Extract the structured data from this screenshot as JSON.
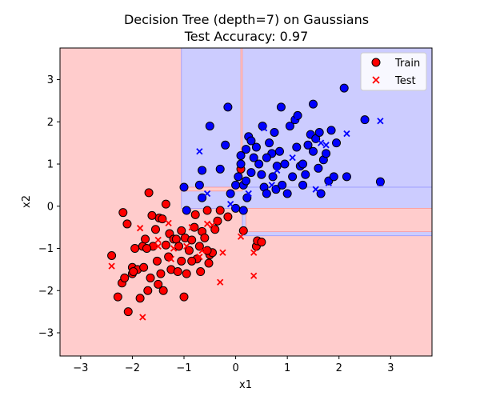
{
  "chart_data": {
    "type": "scatter",
    "title_line1": "Decision Tree (depth=7) on Gaussians",
    "title_line2": "Test Accuracy: 0.97",
    "xlabel": "x1",
    "ylabel": "x2",
    "xlim": [
      -3.4,
      3.8
    ],
    "ylim": [
      -3.55,
      3.75
    ],
    "xticks": [
      -3,
      -2,
      -1,
      0,
      1,
      2,
      3
    ],
    "yticks": [
      -3,
      -2,
      -1,
      0,
      1,
      2,
      3
    ],
    "colors": {
      "region_red": "#ffcccc",
      "region_blue": "#ccccff",
      "boundary_red": "#ff9999",
      "boundary_blue": "#9999ff",
      "class_red": "#ff0000",
      "class_blue": "#0000ff"
    },
    "regions": [
      {
        "class": "red",
        "x0": -3.4,
        "x1": 3.8,
        "y0": -3.55,
        "y1": 3.75
      },
      {
        "class": "blue",
        "x0": -1.05,
        "x1": 3.8,
        "y0": 0.45,
        "y1": 3.75
      },
      {
        "class": "red",
        "x0": 0.1,
        "x1": 0.13,
        "y0": 0.45,
        "y1": 3.75
      },
      {
        "class": "blue",
        "x0": -1.05,
        "x1": 3.8,
        "y0": -0.05,
        "y1": 0.45
      },
      {
        "class": "red",
        "x0": -1.05,
        "x1": 0.13,
        "y0": 0.36,
        "y1": 0.45
      },
      {
        "class": "blue",
        "x0": 0.13,
        "x1": 3.8,
        "y0": -0.7,
        "y1": -0.05
      },
      {
        "class": "red",
        "x0": 0.2,
        "x1": 3.8,
        "y0": -0.6,
        "y1": -0.05
      }
    ],
    "legend": {
      "placement": "upper right",
      "entries": [
        {
          "label": "Train",
          "marker": "circle"
        },
        {
          "label": "Test",
          "marker": "x"
        }
      ]
    },
    "series": [
      {
        "name": "Train",
        "marker": "circle",
        "red": [
          [
            -2.4,
            -1.17
          ],
          [
            -2.2,
            -1.82
          ],
          [
            -2.15,
            -1.7
          ],
          [
            -2.1,
            -0.42
          ],
          [
            -2.0,
            -1.6
          ],
          [
            -2.0,
            -1.45
          ],
          [
            -1.95,
            -1.0
          ],
          [
            -1.9,
            -1.5
          ],
          [
            -1.85,
            -2.18
          ],
          [
            -1.8,
            -0.95
          ],
          [
            -1.78,
            -1.45
          ],
          [
            -1.75,
            -0.78
          ],
          [
            -1.7,
            -2.0
          ],
          [
            -1.65,
            -1.7
          ],
          [
            -1.6,
            -0.95
          ],
          [
            -1.55,
            -0.55
          ],
          [
            -1.52,
            -1.3
          ],
          [
            -1.5,
            -1.85
          ],
          [
            -1.48,
            -0.28
          ],
          [
            -1.45,
            -1.6
          ],
          [
            -1.4,
            -2.0
          ],
          [
            -1.35,
            -0.92
          ],
          [
            -1.3,
            -1.2
          ],
          [
            -1.28,
            -0.65
          ],
          [
            -1.25,
            -1.5
          ],
          [
            -1.2,
            -0.78
          ],
          [
            -1.15,
            -0.78
          ],
          [
            -1.12,
            -1.55
          ],
          [
            -1.1,
            -0.95
          ],
          [
            -1.05,
            -1.3
          ],
          [
            -1.0,
            -2.15
          ],
          [
            -0.98,
            -0.75
          ],
          [
            -0.95,
            -1.6
          ],
          [
            -0.9,
            -1.05
          ],
          [
            -0.85,
            -0.8
          ],
          [
            -0.8,
            -0.5
          ],
          [
            -0.78,
            -0.2
          ],
          [
            -0.75,
            -1.25
          ],
          [
            -0.7,
            -0.95
          ],
          [
            -0.68,
            -1.55
          ],
          [
            -0.65,
            -0.6
          ],
          [
            -0.6,
            -0.75
          ],
          [
            -0.55,
            -0.1
          ],
          [
            -0.52,
            -1.35
          ],
          [
            -0.5,
            -1.15
          ],
          [
            -0.45,
            -1.1
          ],
          [
            -0.4,
            -0.55
          ],
          [
            -0.35,
            -0.35
          ],
          [
            -0.3,
            -0.1
          ],
          [
            -0.15,
            -0.25
          ],
          [
            -1.68,
            0.32
          ],
          [
            -1.35,
            0.05
          ],
          [
            -1.62,
            -0.22
          ],
          [
            -2.18,
            -0.15
          ],
          [
            -2.28,
            -2.15
          ],
          [
            -2.08,
            -2.5
          ],
          [
            -1.98,
            -1.55
          ],
          [
            -1.72,
            -1.0
          ],
          [
            -1.42,
            -0.3
          ],
          [
            -1.05,
            -0.58
          ],
          [
            -0.85,
            -1.3
          ],
          [
            0.1,
            0.88
          ],
          [
            0.15,
            -0.58
          ],
          [
            0.4,
            -0.95
          ],
          [
            0.42,
            -0.82
          ],
          [
            0.5,
            -0.85
          ],
          [
            -0.55,
            -1.05
          ]
        ],
        "blue": [
          [
            -0.7,
            0.5
          ],
          [
            -0.65,
            0.2
          ],
          [
            -0.5,
            1.9
          ],
          [
            -0.3,
            0.88
          ],
          [
            -0.15,
            2.35
          ],
          [
            -0.1,
            0.3
          ],
          [
            0.0,
            0.5
          ],
          [
            0.05,
            0.7
          ],
          [
            0.1,
            1.0
          ],
          [
            0.15,
            0.5
          ],
          [
            0.2,
            1.35
          ],
          [
            0.22,
            0.2
          ],
          [
            0.25,
            1.65
          ],
          [
            0.3,
            0.8
          ],
          [
            0.35,
            1.15
          ],
          [
            0.4,
            1.4
          ],
          [
            0.45,
            1.0
          ],
          [
            0.5,
            0.75
          ],
          [
            0.52,
            1.9
          ],
          [
            0.55,
            0.45
          ],
          [
            0.6,
            0.3
          ],
          [
            0.65,
            1.5
          ],
          [
            0.7,
            1.25
          ],
          [
            0.72,
            0.7
          ],
          [
            0.75,
            1.75
          ],
          [
            0.78,
            0.4
          ],
          [
            0.8,
            0.95
          ],
          [
            0.85,
            1.3
          ],
          [
            0.88,
            2.35
          ],
          [
            0.9,
            0.5
          ],
          [
            0.95,
            1.0
          ],
          [
            1.0,
            0.3
          ],
          [
            1.05,
            1.9
          ],
          [
            1.1,
            0.7
          ],
          [
            1.15,
            2.05
          ],
          [
            1.18,
            1.4
          ],
          [
            1.2,
            2.15
          ],
          [
            1.25,
            0.95
          ],
          [
            1.3,
            0.5
          ],
          [
            1.35,
            0.75
          ],
          [
            1.4,
            1.45
          ],
          [
            1.45,
            1.7
          ],
          [
            1.5,
            2.42
          ],
          [
            1.55,
            1.6
          ],
          [
            1.6,
            0.9
          ],
          [
            1.65,
            0.3
          ],
          [
            1.7,
            1.1
          ],
          [
            1.75,
            1.25
          ],
          [
            1.8,
            0.6
          ],
          [
            1.85,
            1.8
          ],
          [
            1.9,
            0.7
          ],
          [
            1.95,
            1.5
          ],
          [
            2.1,
            2.8
          ],
          [
            2.15,
            0.7
          ],
          [
            2.5,
            2.05
          ],
          [
            2.8,
            0.58
          ],
          [
            -1.0,
            0.45
          ],
          [
            -0.95,
            -0.1
          ],
          [
            -0.2,
            1.45
          ],
          [
            -0.65,
            0.85
          ],
          [
            0.6,
            1.15
          ],
          [
            1.3,
            1.0
          ],
          [
            1.5,
            1.3
          ],
          [
            0.0,
            -0.05
          ],
          [
            0.15,
            -0.1
          ],
          [
            0.2,
            0.6
          ],
          [
            1.62,
            1.75
          ],
          [
            0.1,
            1.2
          ],
          [
            0.3,
            1.55
          ]
        ]
      },
      {
        "name": "Test",
        "marker": "x",
        "red": [
          [
            -2.4,
            -1.42
          ],
          [
            -1.85,
            -0.52
          ],
          [
            -1.8,
            -2.63
          ],
          [
            -1.5,
            -0.8
          ],
          [
            -1.5,
            -0.95
          ],
          [
            -1.3,
            -0.4
          ],
          [
            -1.25,
            -1.25
          ],
          [
            -1.2,
            -1.0
          ],
          [
            -0.95,
            -0.95
          ],
          [
            -0.85,
            -0.5
          ],
          [
            -0.7,
            -1.2
          ],
          [
            -0.65,
            -1.05
          ],
          [
            -0.55,
            -0.42
          ],
          [
            -0.45,
            -0.45
          ],
          [
            -0.3,
            -1.8
          ],
          [
            -0.25,
            -1.1
          ],
          [
            0.35,
            -1.1
          ],
          [
            0.35,
            -1.65
          ],
          [
            0.1,
            -0.72
          ]
        ],
        "blue": [
          [
            -0.7,
            1.3
          ],
          [
            -0.55,
            0.3
          ],
          [
            -0.1,
            0.05
          ],
          [
            0.55,
            1.85
          ],
          [
            0.7,
            0.5
          ],
          [
            0.8,
            0.85
          ],
          [
            1.1,
            1.15
          ],
          [
            1.15,
            2.05
          ],
          [
            1.55,
            0.4
          ],
          [
            1.65,
            1.5
          ],
          [
            1.75,
            1.45
          ],
          [
            1.8,
            0.55
          ],
          [
            2.15,
            1.72
          ],
          [
            2.8,
            0.55
          ],
          [
            2.8,
            2.02
          ],
          [
            0.25,
            0.3
          ]
        ]
      }
    ]
  }
}
